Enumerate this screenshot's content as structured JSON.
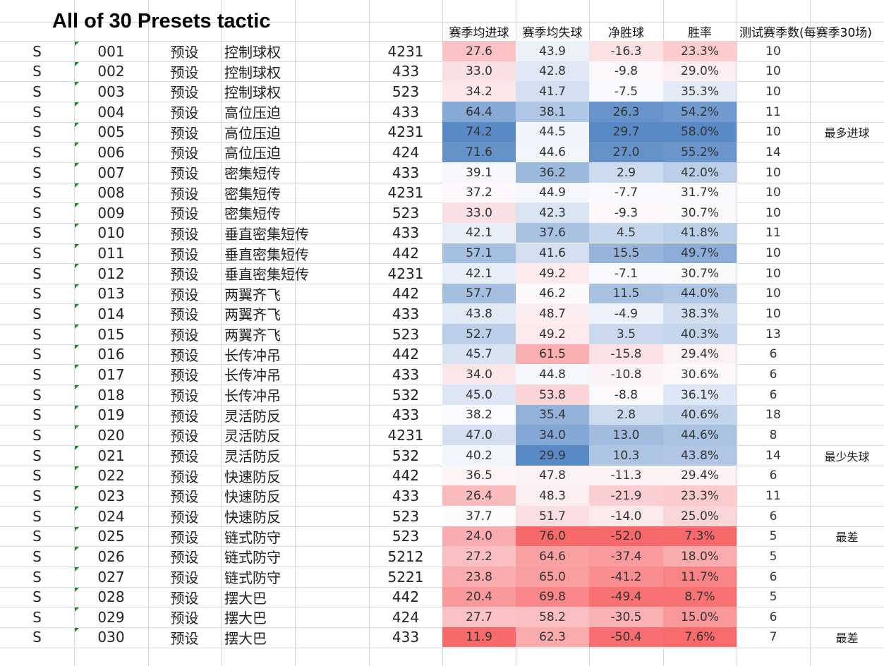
{
  "title": "All of 30 Presets tactic",
  "headers": {
    "goals_for": "赛季均进球",
    "goals_against": "赛季均失球",
    "goal_diff": "净胜球",
    "win_rate": "胜率",
    "seasons": "测试赛季数(每赛季30场)"
  },
  "colors": {
    "blue": "#5a8ac6",
    "red": "#f8696b",
    "neutral": "#fcfcff",
    "grid": "#d9d9d9",
    "flag": "#1a8a2a"
  },
  "rows": [
    {
      "grade": "S",
      "id": "001",
      "type": "预设",
      "name": "控制球权",
      "formation": "4231",
      "gf": "27.6",
      "ga": "43.9",
      "gd": "-16.3",
      "wr": "23.3%",
      "seasons": "10",
      "note": ""
    },
    {
      "grade": "S",
      "id": "002",
      "type": "预设",
      "name": "控制球权",
      "formation": "433",
      "gf": "33.0",
      "ga": "42.8",
      "gd": "-9.8",
      "wr": "29.0%",
      "seasons": "10",
      "note": ""
    },
    {
      "grade": "S",
      "id": "003",
      "type": "预设",
      "name": "控制球权",
      "formation": "523",
      "gf": "34.2",
      "ga": "41.7",
      "gd": "-7.5",
      "wr": "35.3%",
      "seasons": "10",
      "note": ""
    },
    {
      "grade": "S",
      "id": "004",
      "type": "预设",
      "name": "高位压迫",
      "formation": "433",
      "gf": "64.4",
      "ga": "38.1",
      "gd": "26.3",
      "wr": "54.2%",
      "seasons": "11",
      "note": ""
    },
    {
      "grade": "S",
      "id": "005",
      "type": "预设",
      "name": "高位压迫",
      "formation": "4231",
      "gf": "74.2",
      "ga": "44.5",
      "gd": "29.7",
      "wr": "58.0%",
      "seasons": "10",
      "note": "最多进球"
    },
    {
      "grade": "S",
      "id": "006",
      "type": "预设",
      "name": "高位压迫",
      "formation": "424",
      "gf": "71.6",
      "ga": "44.6",
      "gd": "27.0",
      "wr": "55.2%",
      "seasons": "14",
      "note": ""
    },
    {
      "grade": "S",
      "id": "007",
      "type": "预设",
      "name": "密集短传",
      "formation": "433",
      "gf": "39.1",
      "ga": "36.2",
      "gd": "2.9",
      "wr": "42.0%",
      "seasons": "10",
      "note": ""
    },
    {
      "grade": "S",
      "id": "008",
      "type": "预设",
      "name": "密集短传",
      "formation": "4231",
      "gf": "37.2",
      "ga": "44.9",
      "gd": "-7.7",
      "wr": "31.7%",
      "seasons": "10",
      "note": ""
    },
    {
      "grade": "S",
      "id": "009",
      "type": "预设",
      "name": "密集短传",
      "formation": "523",
      "gf": "33.0",
      "ga": "42.3",
      "gd": "-9.3",
      "wr": "30.7%",
      "seasons": "10",
      "note": ""
    },
    {
      "grade": "S",
      "id": "010",
      "type": "预设",
      "name": "垂直密集短传",
      "formation": "433",
      "gf": "42.1",
      "ga": "37.6",
      "gd": "4.5",
      "wr": "41.8%",
      "seasons": "11",
      "note": ""
    },
    {
      "grade": "S",
      "id": "011",
      "type": "预设",
      "name": "垂直密集短传",
      "formation": "442",
      "gf": "57.1",
      "ga": "41.6",
      "gd": "15.5",
      "wr": "49.7%",
      "seasons": "10",
      "note": ""
    },
    {
      "grade": "S",
      "id": "012",
      "type": "预设",
      "name": "垂直密集短传",
      "formation": "4231",
      "gf": "42.1",
      "ga": "49.2",
      "gd": "-7.1",
      "wr": "30.7%",
      "seasons": "10",
      "note": ""
    },
    {
      "grade": "S",
      "id": "013",
      "type": "预设",
      "name": "两翼齐飞",
      "formation": "442",
      "gf": "57.7",
      "ga": "46.2",
      "gd": "11.5",
      "wr": "44.0%",
      "seasons": "10",
      "note": ""
    },
    {
      "grade": "S",
      "id": "014",
      "type": "预设",
      "name": "两翼齐飞",
      "formation": "433",
      "gf": "43.8",
      "ga": "48.7",
      "gd": "-4.9",
      "wr": "38.3%",
      "seasons": "10",
      "note": ""
    },
    {
      "grade": "S",
      "id": "015",
      "type": "预设",
      "name": "两翼齐飞",
      "formation": "523",
      "gf": "52.7",
      "ga": "49.2",
      "gd": "3.5",
      "wr": "40.3%",
      "seasons": "13",
      "note": ""
    },
    {
      "grade": "S",
      "id": "016",
      "type": "预设",
      "name": "长传冲吊",
      "formation": "442",
      "gf": "45.7",
      "ga": "61.5",
      "gd": "-15.8",
      "wr": "29.4%",
      "seasons": "6",
      "note": ""
    },
    {
      "grade": "S",
      "id": "017",
      "type": "预设",
      "name": "长传冲吊",
      "formation": "433",
      "gf": "34.0",
      "ga": "44.8",
      "gd": "-10.8",
      "wr": "30.6%",
      "seasons": "6",
      "note": ""
    },
    {
      "grade": "S",
      "id": "018",
      "type": "预设",
      "name": "长传冲吊",
      "formation": "532",
      "gf": "45.0",
      "ga": "53.8",
      "gd": "-8.8",
      "wr": "36.1%",
      "seasons": "6",
      "note": ""
    },
    {
      "grade": "S",
      "id": "019",
      "type": "预设",
      "name": "灵活防反",
      "formation": "433",
      "gf": "38.2",
      "ga": "35.4",
      "gd": "2.8",
      "wr": "40.6%",
      "seasons": "18",
      "note": ""
    },
    {
      "grade": "S",
      "id": "020",
      "type": "预设",
      "name": "灵活防反",
      "formation": "4231",
      "gf": "47.0",
      "ga": "34.0",
      "gd": "13.0",
      "wr": "44.6%",
      "seasons": "8",
      "note": ""
    },
    {
      "grade": "S",
      "id": "021",
      "type": "预设",
      "name": "灵活防反",
      "formation": "532",
      "gf": "40.2",
      "ga": "29.9",
      "gd": "10.3",
      "wr": "43.8%",
      "seasons": "14",
      "note": "最少失球"
    },
    {
      "grade": "S",
      "id": "022",
      "type": "预设",
      "name": "快速防反",
      "formation": "442",
      "gf": "36.5",
      "ga": "47.8",
      "gd": "-11.3",
      "wr": "29.4%",
      "seasons": "6",
      "note": ""
    },
    {
      "grade": "S",
      "id": "023",
      "type": "预设",
      "name": "快速防反",
      "formation": "433",
      "gf": "26.4",
      "ga": "48.3",
      "gd": "-21.9",
      "wr": "23.3%",
      "seasons": "11",
      "note": ""
    },
    {
      "grade": "S",
      "id": "024",
      "type": "预设",
      "name": "快速防反",
      "formation": "523",
      "gf": "37.7",
      "ga": "51.7",
      "gd": "-14.0",
      "wr": "25.0%",
      "seasons": "6",
      "note": ""
    },
    {
      "grade": "S",
      "id": "025",
      "type": "预设",
      "name": "链式防守",
      "formation": "523",
      "gf": "24.0",
      "ga": "76.0",
      "gd": "-52.0",
      "wr": "7.3%",
      "seasons": "5",
      "note": "最差"
    },
    {
      "grade": "S",
      "id": "026",
      "type": "预设",
      "name": "链式防守",
      "formation": "5212",
      "gf": "27.2",
      "ga": "64.6",
      "gd": "-37.4",
      "wr": "18.0%",
      "seasons": "5",
      "note": ""
    },
    {
      "grade": "S",
      "id": "027",
      "type": "预设",
      "name": "链式防守",
      "formation": "5221",
      "gf": "23.8",
      "ga": "65.0",
      "gd": "-41.2",
      "wr": "11.7%",
      "seasons": "6",
      "note": ""
    },
    {
      "grade": "S",
      "id": "028",
      "type": "预设",
      "name": "摆大巴",
      "formation": "442",
      "gf": "20.4",
      "ga": "69.8",
      "gd": "-49.4",
      "wr": "8.7%",
      "seasons": "5",
      "note": ""
    },
    {
      "grade": "S",
      "id": "029",
      "type": "预设",
      "name": "摆大巴",
      "formation": "424",
      "gf": "27.7",
      "ga": "58.2",
      "gd": "-30.5",
      "wr": "15.0%",
      "seasons": "6",
      "note": ""
    },
    {
      "grade": "S",
      "id": "030",
      "type": "预设",
      "name": "摆大巴",
      "formation": "433",
      "gf": "11.9",
      "ga": "62.3",
      "gd": "-50.4",
      "wr": "7.6%",
      "seasons": "7",
      "note": "最差"
    }
  ]
}
